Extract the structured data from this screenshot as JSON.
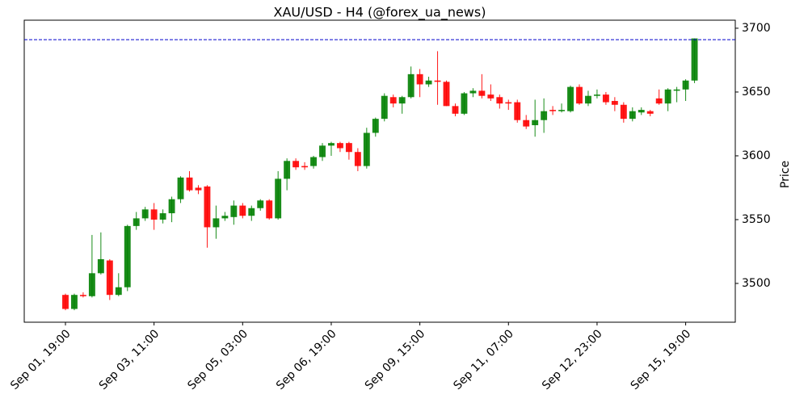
{
  "chart_data": {
    "type": "candlestick",
    "title": "XAU/USD - H4 (@forex_ua_news)",
    "y_label": "Price",
    "categories": [
      "Sep 01, 19:00",
      null,
      null,
      null,
      null,
      null,
      null,
      null,
      null,
      null,
      "Sep 03, 11:00",
      null,
      null,
      null,
      null,
      null,
      null,
      null,
      null,
      null,
      "Sep 05, 03:00",
      null,
      null,
      null,
      null,
      null,
      null,
      null,
      null,
      null,
      "Sep 06, 19:00",
      null,
      null,
      null,
      null,
      null,
      null,
      null,
      null,
      null,
      "Sep 09, 15:00",
      null,
      null,
      null,
      null,
      null,
      null,
      null,
      null,
      null,
      "Sep 11, 07:00",
      null,
      null,
      null,
      null,
      null,
      null,
      null,
      null,
      null,
      "Sep 12, 23:00",
      null,
      null,
      null,
      null,
      null,
      null,
      null,
      null,
      null,
      "Sep 15, 19:00",
      null
    ],
    "open": [
      3491,
      3480,
      3491,
      3490,
      3508,
      3518,
      3491,
      3497,
      3545,
      3551,
      3558,
      3550,
      3555,
      3566,
      3583,
      3575,
      3576,
      3544,
      3551,
      3552,
      3561,
      3553,
      3559,
      3565,
      3551,
      3582,
      3596,
      3592,
      3592,
      3599,
      3608,
      3610,
      3610,
      3603,
      3592,
      3618,
      3629,
      3646,
      3641,
      3646,
      3664,
      3656,
      3659,
      3658,
      3639,
      3633,
      3649,
      3651,
      3648,
      3646,
      3642,
      3642,
      3628,
      3624,
      3628,
      3636,
      3635,
      3635,
      3654,
      3641,
      3647,
      3648,
      3643,
      3640,
      3629,
      3634,
      3635,
      3645,
      3641,
      3651,
      3652,
      3659
    ],
    "high": [
      3492,
      3492,
      3493,
      3538,
      3540,
      3519,
      3508,
      3546,
      3556,
      3560,
      3563,
      3558,
      3568,
      3584,
      3588,
      3577,
      3577,
      3561,
      3556,
      3565,
      3563,
      3561,
      3566,
      3566,
      3588,
      3598,
      3598,
      3595,
      3600,
      3610,
      3611,
      3611,
      3611,
      3606,
      3622,
      3630,
      3649,
      3648,
      3647,
      3670,
      3668,
      3662,
      3682,
      3659,
      3641,
      3650,
      3653,
      3664,
      3656,
      3648,
      3644,
      3644,
      3632,
      3644,
      3645,
      3639,
      3641,
      3655,
      3656,
      3651,
      3652,
      3650,
      3646,
      3642,
      3638,
      3638,
      3636,
      3652,
      3653,
      3654,
      3660,
      3692
    ],
    "low": [
      3479,
      3479,
      3489,
      3489,
      3507,
      3487,
      3490,
      3494,
      3542,
      3549,
      3542,
      3547,
      3548,
      3563,
      3572,
      3570,
      3528,
      3535,
      3549,
      3546,
      3551,
      3549,
      3557,
      3550,
      3550,
      3573,
      3589,
      3589,
      3590,
      3596,
      3600,
      3603,
      3597,
      3588,
      3590,
      3615,
      3627,
      3638,
      3633,
      3645,
      3646,
      3654,
      3640,
      3639,
      3631,
      3632,
      3646,
      3645,
      3643,
      3637,
      3636,
      3626,
      3621,
      3615,
      3618,
      3632,
      3634,
      3634,
      3640,
      3639,
      3645,
      3640,
      3635,
      3626,
      3627,
      3632,
      3631,
      3640,
      3635,
      3642,
      3643,
      3657
    ],
    "close": [
      3480,
      3491,
      3490,
      3508,
      3519,
      3491,
      3497,
      3545,
      3551,
      3558,
      3550,
      3555,
      3566,
      3583,
      3573,
      3573,
      3544,
      3551,
      3553,
      3561,
      3553,
      3559,
      3565,
      3551,
      3582,
      3596,
      3591,
      3591,
      3599,
      3608,
      3610,
      3606,
      3603,
      3592,
      3618,
      3629,
      3647,
      3641,
      3646,
      3664,
      3656,
      3659,
      3658,
      3639,
      3633,
      3649,
      3651,
      3647,
      3645,
      3641,
      3641,
      3628,
      3623,
      3628,
      3635,
      3635,
      3636,
      3654,
      3641,
      3647,
      3648,
      3642,
      3640,
      3629,
      3635,
      3636,
      3633,
      3641,
      3652,
      3652,
      3659,
      3692
    ],
    "up_color": "#008000",
    "down_color": "#ff0000",
    "hline": 3691,
    "hline_color": "#0000cc",
    "xlim": [
      -4.65,
      75.6
    ],
    "ylim": [
      3469.6,
      3706.3
    ],
    "yticks": [
      3500,
      3550,
      3600,
      3650,
      3700
    ]
  }
}
